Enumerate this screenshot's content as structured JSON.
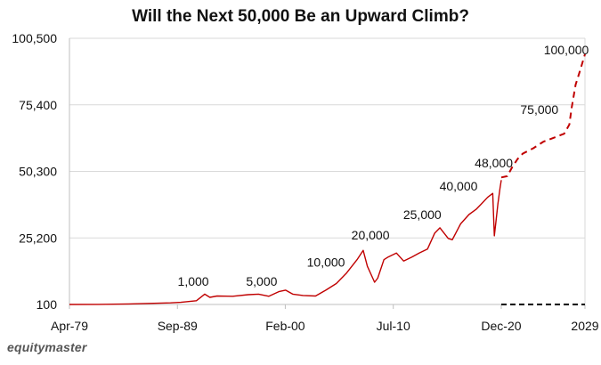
{
  "chart_data": {
    "type": "line",
    "title": "Will the Next 50,000 Be an Upward Climb?",
    "xlabel": "",
    "ylabel": "",
    "x_range": [
      1979.25,
      2029.0
    ],
    "ylim": [
      100,
      100500
    ],
    "y_ticks": [
      "100",
      "25,200",
      "50,300",
      "75,400",
      "100,500"
    ],
    "y_tick_values": [
      100,
      25200,
      50300,
      75400,
      100500
    ],
    "x_ticks": [
      "Apr-79",
      "Sep-89",
      "Feb-00",
      "Jul-10",
      "Dec-20",
      "2029"
    ],
    "x_tick_values": [
      1979.25,
      1989.67,
      2000.08,
      2010.5,
      2020.92,
      2029.0
    ],
    "gridlines": true,
    "series": [
      {
        "style": "solid",
        "color": "#c00000",
        "x": [
          1979.25,
          1982.0,
          1985.0,
          1987.0,
          1989.0,
          1990.0,
          1991.5,
          1992.3,
          1992.8,
          1993.5,
          1995.0,
          1996.5,
          1997.5,
          1998.5,
          1999.5,
          2000.1,
          2000.8,
          2001.8,
          2003.0,
          2004.0,
          2005.0,
          2006.0,
          2007.0,
          2007.6,
          2008.0,
          2008.7,
          2009.0,
          2009.6,
          2010.0,
          2010.8,
          2011.5,
          2012.3,
          2013.0,
          2013.8,
          2014.5,
          2015.0,
          2015.8,
          2016.2,
          2017.0,
          2017.8,
          2018.5,
          2019.0,
          2019.6,
          2020.1,
          2020.25,
          2020.4,
          2020.6,
          2020.8,
          2020.92
        ],
        "values": [
          100,
          150,
          300,
          500,
          700,
          900,
          1500,
          4000,
          2800,
          3300,
          3200,
          3800,
          4000,
          3200,
          5000,
          5500,
          4000,
          3500,
          3300,
          5500,
          8000,
          12000,
          17000,
          20500,
          14500,
          8500,
          10000,
          17000,
          18000,
          19500,
          16500,
          18000,
          19500,
          21000,
          27000,
          29000,
          25000,
          24500,
          30500,
          34000,
          36000,
          38000,
          40500,
          42000,
          26000,
          31000,
          38000,
          44000,
          47000
        ]
      },
      {
        "style": "dashed",
        "color": "#c00000",
        "x": [
          2020.92,
          2021.5,
          2022.0,
          2022.5,
          2023.0,
          2024.0,
          2025.0,
          2026.0,
          2027.0,
          2027.5,
          2027.7,
          2028.1,
          2028.5,
          2029.0
        ],
        "values": [
          48000,
          48500,
          52000,
          55000,
          57000,
          59000,
          61500,
          63000,
          64500,
          68000,
          74000,
          83000,
          88000,
          94500
        ]
      },
      {
        "style": "dashed",
        "color": "#000000",
        "x": [
          2020.92,
          2029.0
        ],
        "values": [
          100,
          100
        ]
      }
    ],
    "annotations": [
      {
        "text": "1,000",
        "x": 1991.2,
        "y": 7200
      },
      {
        "text": "5,000",
        "x": 1997.8,
        "y": 7200
      },
      {
        "text": "10,000",
        "x": 2004.0,
        "y": 14300
      },
      {
        "text": "20,000",
        "x": 2008.3,
        "y": 24600
      },
      {
        "text": "25,000",
        "x": 2013.3,
        "y": 32400
      },
      {
        "text": "40,000",
        "x": 2016.8,
        "y": 43000
      },
      {
        "text": "48,000",
        "x": 2020.2,
        "y": 51800
      },
      {
        "text": "75,000",
        "x": 2024.6,
        "y": 72000
      },
      {
        "text": "100,000",
        "x": 2027.2,
        "y": 94400
      }
    ]
  },
  "brand": "equitymaster"
}
